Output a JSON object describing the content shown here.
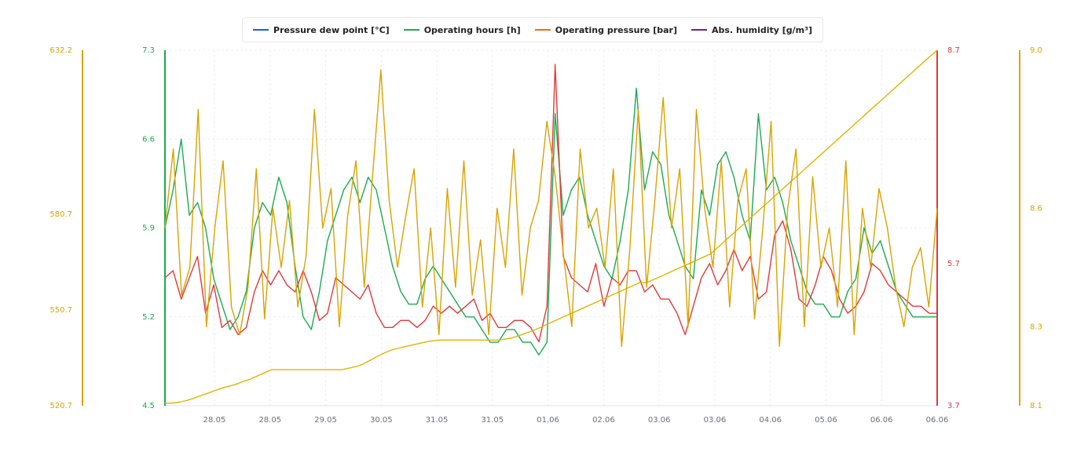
{
  "legend": [
    {
      "label": "Pressure dew point [°C]",
      "color": "#1a5fd6"
    },
    {
      "label": "Operating hours [h]",
      "color": "#1aab4f"
    },
    {
      "label": "Operating pressure [bar]",
      "color": "#f06d0f"
    },
    {
      "label": "Abs. humidity [g/m³]",
      "color": "#6d1d9a"
    }
  ],
  "chart_data": {
    "type": "line",
    "x_tick_labels": [
      "28.05",
      "28.05",
      "29.05",
      "30.05",
      "31.05",
      "31.05",
      "01.06",
      "02.06",
      "03.06",
      "03.06",
      "04.06",
      "05.06",
      "06.06",
      "06.06"
    ],
    "axes": {
      "outer_left": {
        "ticks": [
          "632.2",
          "580.7",
          "550.7",
          "520.7"
        ],
        "range": [
          520.7,
          632.2
        ],
        "color": "#d9a300"
      },
      "inner_left": {
        "ticks": [
          "7.3",
          "6.6",
          "5.9",
          "5.2",
          "4.5"
        ],
        "range": [
          4.5,
          7.3
        ],
        "color": "#1aab4f"
      },
      "inner_right": {
        "ticks": [
          "8.7",
          "5.7",
          "3.7"
        ],
        "range": [
          3.7,
          8.7
        ],
        "color": "#e03a3a"
      },
      "outer_right": {
        "ticks": [
          "9.0",
          "8.6",
          "8.3",
          "8.1"
        ],
        "range": [
          8.1,
          9.0
        ],
        "color": "#d9a300"
      }
    },
    "grid": true,
    "series": [
      {
        "color": "#1aab4f",
        "axis": "inner_left",
        "values": [
          5.9,
          6.2,
          6.6,
          6.0,
          6.1,
          5.9,
          5.5,
          5.3,
          5.1,
          5.2,
          5.4,
          5.9,
          6.1,
          6.0,
          6.3,
          6.1,
          5.6,
          5.2,
          5.1,
          5.4,
          5.8,
          6.0,
          6.2,
          6.3,
          6.1,
          6.3,
          6.2,
          5.9,
          5.6,
          5.4,
          5.3,
          5.3,
          5.5,
          5.6,
          5.5,
          5.4,
          5.3,
          5.2,
          5.2,
          5.1,
          5.0,
          5.0,
          5.1,
          5.1,
          5.0,
          5.0,
          4.9,
          5.0,
          6.8,
          6.0,
          6.2,
          6.3,
          6.0,
          5.8,
          5.6,
          5.5,
          5.8,
          6.2,
          7.0,
          6.2,
          6.5,
          6.4,
          6.0,
          5.8,
          5.6,
          5.5,
          6.2,
          6.0,
          6.4,
          6.5,
          6.3,
          6.0,
          5.8,
          6.8,
          6.2,
          6.3,
          6.1,
          5.8,
          5.6,
          5.4,
          5.3,
          5.3,
          5.2,
          5.2,
          5.4,
          5.5,
          5.9,
          5.7,
          5.8,
          5.6,
          5.4,
          5.3,
          5.2,
          5.2,
          5.2,
          5.2
        ]
      },
      {
        "color": "#e03a3a",
        "axis": "inner_right",
        "values": [
          5.5,
          5.6,
          5.2,
          5.5,
          5.8,
          5.0,
          5.4,
          4.8,
          4.9,
          4.7,
          4.8,
          5.3,
          5.6,
          5.4,
          5.6,
          5.4,
          5.3,
          5.6,
          5.3,
          4.9,
          5.0,
          5.5,
          5.4,
          5.3,
          5.2,
          5.4,
          5.0,
          4.8,
          4.8,
          4.9,
          4.9,
          4.8,
          4.9,
          5.1,
          5.0,
          5.1,
          5.0,
          5.1,
          5.2,
          4.9,
          5.0,
          4.8,
          4.8,
          4.9,
          4.9,
          4.8,
          4.6,
          5.1,
          8.5,
          5.8,
          5.5,
          5.4,
          5.3,
          5.7,
          5.1,
          5.5,
          5.4,
          5.6,
          5.6,
          5.3,
          5.4,
          5.2,
          5.2,
          5.0,
          4.7,
          5.1,
          5.5,
          5.7,
          5.4,
          5.6,
          5.9,
          5.6,
          5.8,
          5.2,
          5.3,
          6.1,
          6.3,
          5.9,
          5.2,
          5.1,
          5.4,
          5.8,
          5.6,
          5.2,
          5.0,
          5.1,
          5.3,
          5.7,
          5.6,
          5.4,
          5.3,
          5.2,
          5.1,
          5.1,
          5.0,
          5.0
        ]
      },
      {
        "color": "#e0b400",
        "axis": "outer_left",
        "values": [
          521.5,
          521.5,
          521.8,
          522.3,
          523.0,
          523.8,
          524.6,
          525.4,
          526.2,
          526.8,
          527.4,
          528.3,
          529.0,
          530.0,
          531.0,
          532.0,
          532.0,
          532.0,
          532.0,
          532.0,
          532.0,
          532.0,
          532.0,
          532.0,
          532.0,
          532.0,
          532.5,
          533.0,
          533.8,
          535.0,
          536.2,
          537.3,
          538.2,
          538.8,
          539.3,
          539.8,
          540.3,
          540.8,
          541.1,
          541.3,
          541.3,
          541.3,
          541.3,
          541.3,
          541.3,
          541.3,
          541.3,
          541.3,
          541.6,
          542.0,
          542.7,
          543.5,
          544.3,
          545.3,
          546.3,
          547.3,
          548.3,
          549.3,
          550.3,
          551.3,
          552.3,
          553.3,
          554.3,
          555.3,
          556.3,
          557.3,
          558.3,
          559.3,
          559.3,
          560.3,
          561.3,
          562.3,
          563.3,
          564.3,
          565.3,
          566.3,
          567.3,
          568.3,
          570.3,
          572.3,
          574.3,
          576.3,
          578.3,
          580.3,
          582.3,
          584.3,
          586.3,
          588.3,
          590.3,
          592.3,
          594.3,
          596.3,
          598.3,
          600.3,
          602.3,
          604.3,
          606.3,
          608.3,
          610.3,
          612.3,
          614.3,
          616.3,
          618.3,
          620.3,
          622.3,
          624.3,
          626.3,
          628.3,
          630.3,
          632.2
        ]
      },
      {
        "color": "#d9a300",
        "axis": "outer_right",
        "values": [
          8.55,
          8.75,
          8.38,
          8.45,
          8.85,
          8.3,
          8.55,
          8.72,
          8.35,
          8.28,
          8.4,
          8.7,
          8.32,
          8.6,
          8.45,
          8.62,
          8.35,
          8.48,
          8.85,
          8.55,
          8.65,
          8.3,
          8.58,
          8.72,
          8.4,
          8.68,
          8.95,
          8.62,
          8.45,
          8.58,
          8.7,
          8.35,
          8.55,
          8.28,
          8.65,
          8.4,
          8.72,
          8.38,
          8.52,
          8.28,
          8.6,
          8.45,
          8.75,
          8.38,
          8.55,
          8.62,
          8.82,
          8.68,
          8.48,
          8.3,
          8.75,
          8.55,
          8.6,
          8.45,
          8.7,
          8.25,
          8.5,
          8.85,
          8.4,
          8.62,
          8.88,
          8.55,
          8.7,
          8.3,
          8.85,
          8.6,
          8.45,
          8.72,
          8.35,
          8.62,
          8.7,
          8.32,
          8.55,
          8.82,
          8.25,
          8.6,
          8.75,
          8.3,
          8.68,
          8.45,
          8.55,
          8.35,
          8.72,
          8.28,
          8.6,
          8.45,
          8.65,
          8.55,
          8.4,
          8.3,
          8.45,
          8.5,
          8.35,
          8.6
        ]
      }
    ]
  }
}
